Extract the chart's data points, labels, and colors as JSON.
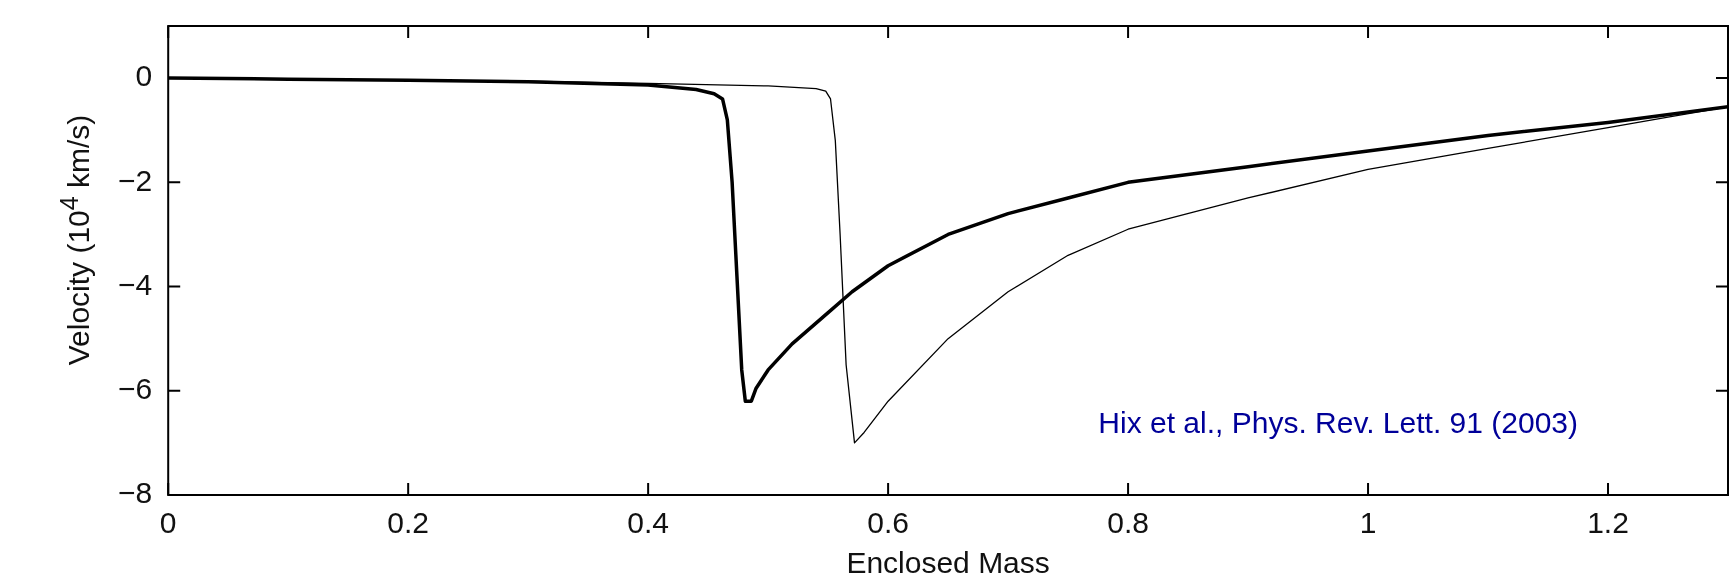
{
  "chart_data": {
    "type": "line",
    "xlabel": "Enclosed Mass",
    "ylabel": "Velocity (10$^{4}$ km/s)",
    "xlim": [
      0,
      1.3
    ],
    "xticks": [
      0,
      0.2,
      0.4,
      0.6,
      0.8,
      1,
      1.2
    ],
    "ylim": [
      -8,
      1
    ],
    "yticks": [
      -8,
      -6,
      -4,
      -2,
      0
    ],
    "grid": false,
    "legend": false,
    "marker": "none",
    "line_style": "solid",
    "annotations": [
      "Hix et al., Phys. Rev. Lett. 91 (2003)"
    ],
    "series": [
      {
        "color": "#000000",
        "x": [
          0,
          0.1,
          0.2,
          0.3,
          0.4,
          0.44,
          0.455,
          0.462,
          0.466,
          0.47,
          0.474,
          0.478,
          0.481,
          0.486,
          0.49,
          0.5,
          0.52,
          0.55,
          0.57,
          0.6,
          0.65,
          0.7,
          0.75,
          0.8,
          0.9,
          1.0,
          1.1,
          1.2,
          1.3
        ],
        "values": [
          0,
          -0.02,
          -0.04,
          -0.07,
          -0.13,
          -0.22,
          -0.3,
          -0.4,
          -0.8,
          -2,
          -3.8,
          -5.6,
          -6.2,
          -6.2,
          -5.95,
          -5.6,
          -5.1,
          -4.5,
          -4.1,
          -3.6,
          -3.0,
          -2.6,
          -2.3,
          -2.0,
          -1.7,
          -1.4,
          -1.1,
          -0.85,
          -0.55
        ]
      },
      {
        "color": "#000000",
        "x": [
          0,
          0.1,
          0.2,
          0.3,
          0.4,
          0.5,
          0.54,
          0.548,
          0.552,
          0.556,
          0.56,
          0.565,
          0.572,
          0.58,
          0.6,
          0.65,
          0.7,
          0.75,
          0.8,
          0.9,
          1.0,
          1.1,
          1.2,
          1.25,
          1.3
        ],
        "values": [
          0,
          -0.02,
          -0.04,
          -0.06,
          -0.1,
          -0.15,
          -0.2,
          -0.25,
          -0.4,
          -1.2,
          -3,
          -5.5,
          -7.0,
          -6.8,
          -6.2,
          -5.0,
          -4.1,
          -3.4,
          -2.9,
          -2.3,
          -1.75,
          -1.35,
          -0.95,
          -0.75,
          -0.55
        ]
      }
    ]
  }
}
